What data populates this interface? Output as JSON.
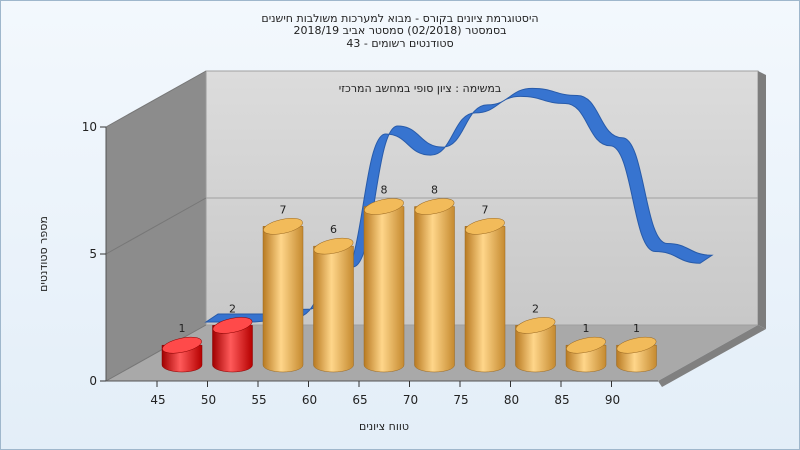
{
  "chart_data": {
    "type": "bar",
    "title_lines": [
      "היסטוגרמת ציונים בקורס - מבוא למערכות משולבות חישנים",
      "בסמסטר  (02/2018)  סמסטר אביב 2018/19",
      "סטודנטים רשומים - 43"
    ],
    "subtitle": "במשימה : ציון סופי במחשב המרכזי",
    "xlabel": "טווח ציונים",
    "ylabel": "מספר סטודנטים",
    "categories": [
      "45",
      "50",
      "55",
      "60",
      "65",
      "70",
      "75",
      "80",
      "85",
      "90"
    ],
    "values": [
      1,
      2,
      7,
      6,
      8,
      8,
      7,
      2,
      1,
      1
    ],
    "bar_colors": [
      "#e01010",
      "#e01010",
      "#e8a94a",
      "#e8a94a",
      "#e8a94a",
      "#e8a94a",
      "#e8a94a",
      "#e8a94a",
      "#e8a94a",
      "#e8a94a"
    ],
    "y_ticks": [
      "0",
      "5",
      "10"
    ],
    "ylim": [
      0,
      10
    ],
    "curve_color": "#2f6fd0",
    "curve_values": [
      0,
      0,
      0.2,
      2,
      8,
      7.1,
      8.9,
      9.6,
      9.3,
      7.5,
      3,
      2.5
    ]
  }
}
